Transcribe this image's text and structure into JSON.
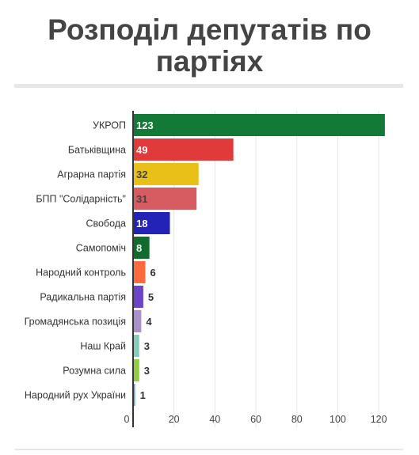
{
  "title": "Розподіл депутатів по партіях",
  "chart_data": {
    "type": "bar",
    "orientation": "horizontal",
    "title": "Розподіл депутатів по партіях",
    "xlabel": "",
    "ylabel": "",
    "categories": [
      "УКРОП",
      "Батьківщина",
      "Аграрна партія",
      "БПП \"Солідарність\"",
      "Свобода",
      "Самопоміч",
      "Народний контроль",
      "Радикальна партія",
      "Громадянська позиція",
      "Наш Край",
      "Розумна сила",
      "Народний рух України"
    ],
    "values": [
      123,
      49,
      32,
      31,
      18,
      8,
      6,
      5,
      4,
      3,
      3,
      1
    ],
    "colors": [
      "#127a36",
      "#e03a3a",
      "#e8c018",
      "#d65c62",
      "#2323b8",
      "#116b2d",
      "#ff6b3d",
      "#6a45c8",
      "#ab8fc8",
      "#84cdb9",
      "#8fce3c",
      "#5aa5e6"
    ],
    "xlim": [
      0,
      130
    ],
    "xticks": [
      0,
      20,
      40,
      60,
      80,
      100,
      120
    ],
    "grid": true
  }
}
